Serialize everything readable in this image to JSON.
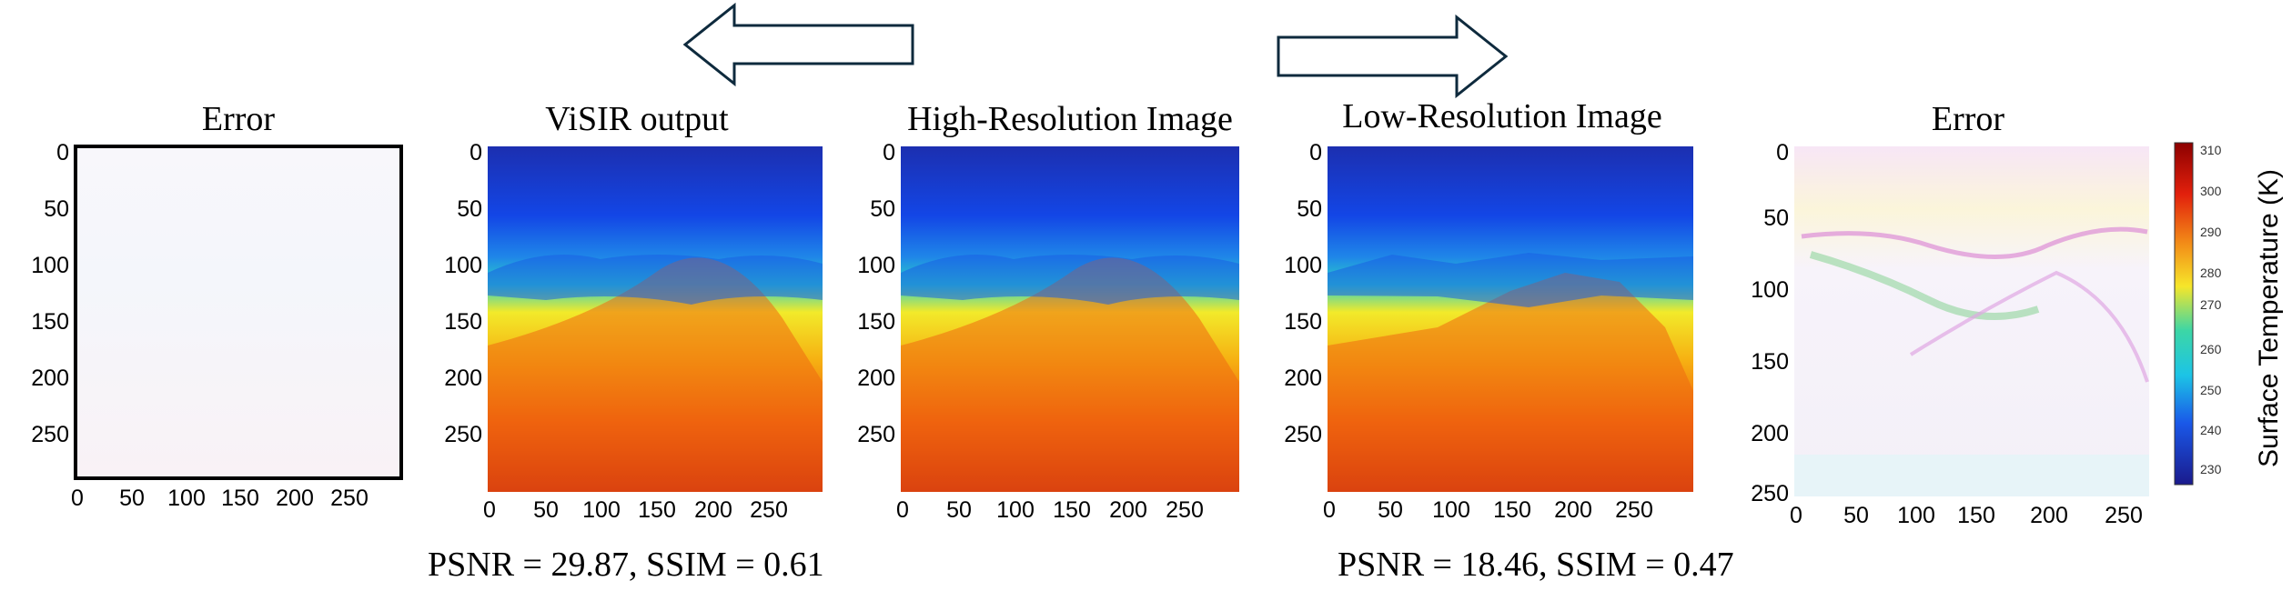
{
  "panels": [
    {
      "title": "Error",
      "xticks": [
        "0",
        "50",
        "100",
        "150",
        "200",
        "250"
      ],
      "yticks": [
        "0",
        "50",
        "100",
        "150",
        "200",
        "250"
      ]
    },
    {
      "title": "ViSIR output",
      "xticks": [
        "0",
        "50",
        "100",
        "150",
        "200",
        "250"
      ],
      "yticks": [
        "0",
        "50",
        "100",
        "150",
        "200",
        "250"
      ]
    },
    {
      "title": "High-Resolution Image",
      "xticks": [
        "0",
        "50",
        "100",
        "150",
        "200",
        "250"
      ],
      "yticks": [
        "0",
        "50",
        "100",
        "150",
        "200",
        "250"
      ]
    },
    {
      "title": "Low-Resolution Image",
      "xticks": [
        "0",
        "50",
        "100",
        "150",
        "200",
        "250"
      ],
      "yticks": [
        "0",
        "50",
        "100",
        "150",
        "200",
        "250"
      ]
    },
    {
      "title": "Error",
      "xticks": [
        "0",
        "50",
        "100",
        "150",
        "200",
        "250"
      ],
      "yticks": [
        "0",
        "50",
        "100",
        "150",
        "200",
        "250"
      ]
    }
  ],
  "metrics": {
    "visir": "PSNR = 29.87,  SSIM = 0.61",
    "low_res": "PSNR = 18.46,  SSIM = 0.47"
  },
  "colorbar": {
    "label": "Surface Temperature (K)",
    "ticks": [
      "310",
      "300",
      "290",
      "280",
      "270",
      "260",
      "250",
      "240",
      "230"
    ]
  },
  "arrows": {
    "left": "arrow-left",
    "right": "arrow-right"
  },
  "colors": {
    "cold": "#0a1fc8",
    "mid": "#18c9d8",
    "warm": "#f0e020",
    "hot": "#ef4b0c",
    "hottest": "#b80c0c"
  }
}
